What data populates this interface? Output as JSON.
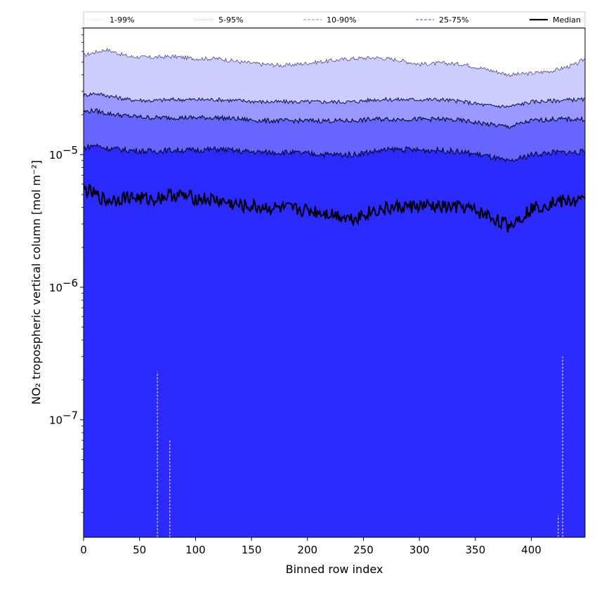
{
  "chart_data": {
    "type": "area",
    "title": "",
    "xlabel": "Binned row index",
    "ylabel": "NO₂ tropospheric vertical column [mol m⁻²]",
    "xlim": [
      0,
      448
    ],
    "ylim": [
      1.3e-08,
      9e-05
    ],
    "yscale": "log",
    "x_ticks": [
      0,
      50,
      100,
      150,
      200,
      250,
      300,
      350,
      400
    ],
    "y_ticks": [
      {
        "value": 1e-05,
        "base": "10",
        "exp": "−5"
      },
      {
        "value": 1e-06,
        "base": "10",
        "exp": "−6"
      },
      {
        "value": 1e-07,
        "base": "10",
        "exp": "−7"
      }
    ],
    "grid": false,
    "legend_position": "top",
    "colors": {
      "band_1_99": "#2b2bff",
      "band_5_95": "#cdcdff",
      "band_10_90": "#9999ff",
      "band_25_75": "#6666ff",
      "median": "#000000"
    },
    "legend": [
      {
        "label": "1-99%",
        "style": "dotted",
        "color": "#d8d8d8"
      },
      {
        "label": "5-95%",
        "style": "dotted",
        "color": "#b0b0b0"
      },
      {
        "label": "10-90%",
        "style": "dashed",
        "color": "#9a9aff"
      },
      {
        "label": "25-75%",
        "style": "dashed",
        "color": "#6b6bff"
      },
      {
        "label": "Median",
        "style": "solid",
        "color": "#000000"
      }
    ],
    "x_knots": [
      0,
      10,
      20,
      40,
      60,
      80,
      100,
      120,
      140,
      160,
      180,
      200,
      220,
      240,
      260,
      280,
      300,
      320,
      340,
      360,
      380,
      400,
      420,
      440,
      448
    ],
    "series": [
      {
        "name": "95%",
        "values": [
          5.6e-05,
          5.9e-05,
          6.2e-05,
          5.5e-05,
          5.4e-05,
          5.5e-05,
          5.3e-05,
          5.3e-05,
          5e-05,
          4.8e-05,
          4.7e-05,
          4.9e-05,
          5.1e-05,
          5.3e-05,
          5.4e-05,
          5.2e-05,
          4.8e-05,
          4.9e-05,
          4.8e-05,
          4.4e-05,
          4e-05,
          4.1e-05,
          4.3e-05,
          4.8e-05,
          5.3e-05
        ]
      },
      {
        "name": "90%",
        "values": [
          2.8e-05,
          2.9e-05,
          2.8e-05,
          2.6e-05,
          2.55e-05,
          2.6e-05,
          2.6e-05,
          2.6e-05,
          2.55e-05,
          2.5e-05,
          2.5e-05,
          2.5e-05,
          2.5e-05,
          2.5e-05,
          2.6e-05,
          2.6e-05,
          2.6e-05,
          2.6e-05,
          2.5e-05,
          2.35e-05,
          2.3e-05,
          2.5e-05,
          2.55e-05,
          2.6e-05,
          2.6e-05
        ]
      },
      {
        "name": "75%",
        "values": [
          2.1e-05,
          2.15e-05,
          2.05e-05,
          1.95e-05,
          1.9e-05,
          1.9e-05,
          1.9e-05,
          1.9e-05,
          1.85e-05,
          1.8e-05,
          1.8e-05,
          1.8e-05,
          1.8e-05,
          1.8e-05,
          1.85e-05,
          1.85e-05,
          1.85e-05,
          1.85e-05,
          1.8e-05,
          1.7e-05,
          1.62e-05,
          1.8e-05,
          1.85e-05,
          1.85e-05,
          1.85e-05
        ]
      },
      {
        "name": "25%",
        "values": [
          1.12e-05,
          1.18e-05,
          1.12e-05,
          1.08e-05,
          1.06e-05,
          1.08e-05,
          1.08e-05,
          1.1e-05,
          1.06e-05,
          1.04e-05,
          1.04e-05,
          1.02e-05,
          1e-05,
          1e-05,
          1.06e-05,
          1.1e-05,
          1.08e-05,
          1.08e-05,
          1.04e-05,
          9.8e-06,
          8.8e-06,
          1e-05,
          1.04e-05,
          1.04e-05,
          1.05e-05
        ]
      },
      {
        "name": "Median",
        "values": [
          5.5e-06,
          5e-06,
          4.5e-06,
          4.8e-06,
          4.6e-06,
          5e-06,
          4.7e-06,
          4.5e-06,
          4.1e-06,
          4e-06,
          3.9e-06,
          3.8e-06,
          3.6e-06,
          3.3e-06,
          3.8e-06,
          4e-06,
          4.1e-06,
          4e-06,
          4e-06,
          3.5e-06,
          2.9e-06,
          3.9e-06,
          4.4e-06,
          4.5e-06,
          4.4e-06
        ]
      }
    ],
    "vertical_spikes": [
      {
        "x": 66,
        "top": 2.3e-07,
        "color": "#cfcfcf"
      },
      {
        "x": 77,
        "top": 7e-08,
        "color": "#cfcfcf"
      },
      {
        "x": 424,
        "top": 1.9e-08,
        "color": "#cfcfcf"
      },
      {
        "x": 428,
        "top": 3e-07,
        "color": "#cfcfcf"
      }
    ]
  }
}
